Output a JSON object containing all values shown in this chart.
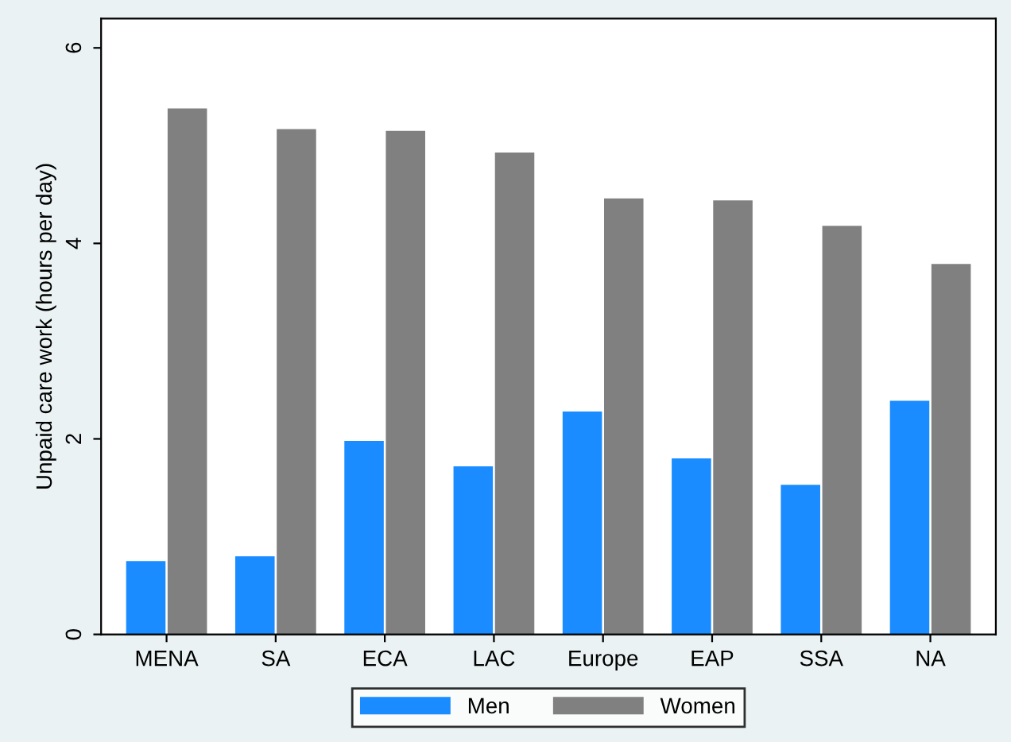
{
  "chart_data": {
    "type": "bar",
    "ylabel": "Unpaid care work (hours per day)",
    "categories": [
      "MENA",
      "SA",
      "ECA",
      "LAC",
      "Europe",
      "EAP",
      "SSA",
      "NA"
    ],
    "series": [
      {
        "name": "Men",
        "color": "#1a8cff",
        "values": [
          0.75,
          0.8,
          1.98,
          1.72,
          2.28,
          1.8,
          1.53,
          2.39
        ]
      },
      {
        "name": "Women",
        "color": "#808080",
        "values": [
          5.38,
          5.17,
          5.15,
          4.93,
          4.46,
          4.44,
          4.18,
          3.79
        ]
      }
    ],
    "ylim": [
      0,
      6.3
    ],
    "yticks": [
      0,
      2,
      4,
      6
    ],
    "grid": false,
    "legend": "bottom"
  }
}
